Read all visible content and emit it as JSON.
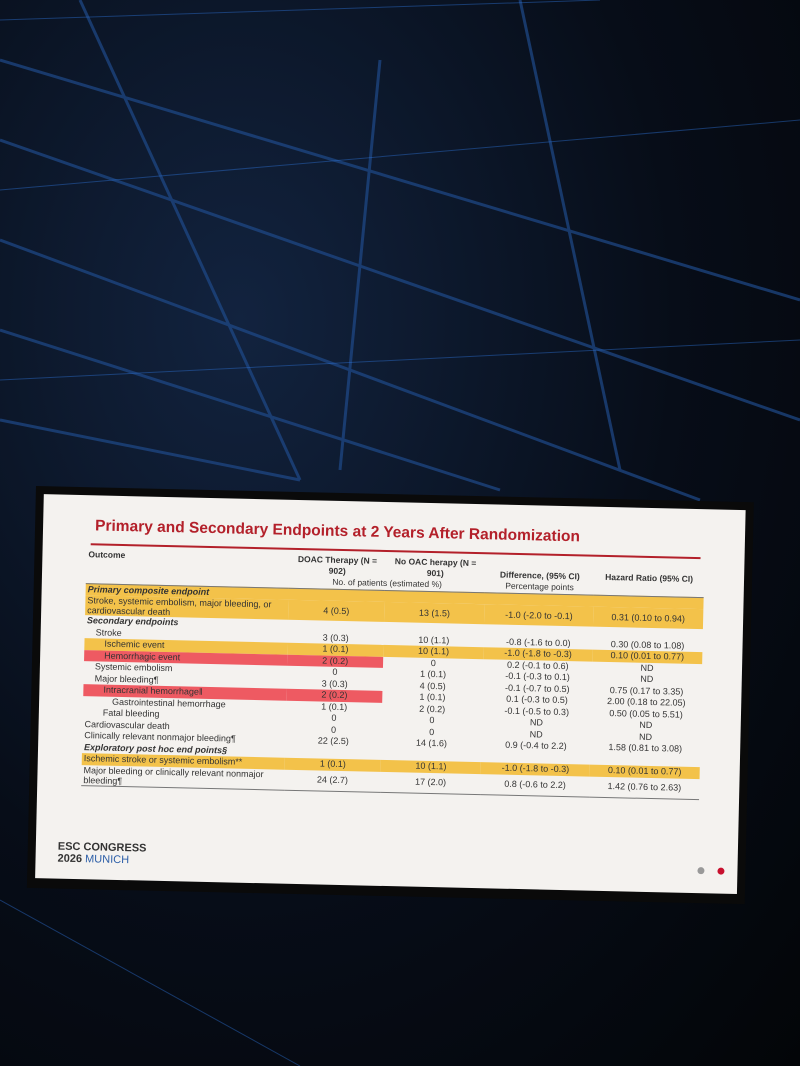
{
  "slide": {
    "title": "Primary and Secondary Endpoints at 2 Years After Randomization",
    "table": {
      "header": [
        "Outcome",
        "DOAC Therapy (N = 902)",
        "No OAC herapy (N = 901)",
        "Difference, (95% CI)",
        "Hazard Ratio (95% CI)"
      ],
      "subheader": [
        "No. of patients (estimated %)",
        "Percentage points"
      ],
      "rows": [
        {
          "section": "Primary composite endpoint",
          "highlight": "yellow"
        },
        {
          "cells": [
            "Stroke, systemic embolism, major bleeding, or cardiovascular death",
            "4 (0.5)",
            "13 (1.5)",
            "-1.0 (-2.0 to -0.1)",
            "0.31 (0.10 to 0.94)"
          ],
          "highlight": "yellow"
        },
        {
          "section": "Secondary endpoints"
        },
        {
          "cells": [
            "Stroke",
            "3 (0.3)",
            "10 (1.1)",
            "-0.8 (-1.6 to 0.0)",
            "0.30 (0.08 to 1.08)"
          ],
          "indent": 1
        },
        {
          "cells": [
            "Ischemic event",
            "1 (0.1)",
            "10 (1.1)",
            "-1.0 (-1.8 to -0.3)",
            "0.10 (0.01 to 0.77)"
          ],
          "indent": 2,
          "highlight": "yellow"
        },
        {
          "cells": [
            "Hemorrhagic event",
            "2 (0.2)",
            "0",
            "0.2 (-0.1 to 0.6)",
            "ND"
          ],
          "indent": 2,
          "highlight": "red"
        },
        {
          "cells": [
            "Systemic embolism",
            "0",
            "1 (0.1)",
            "-0.1 (-0.3 to 0.1)",
            "ND"
          ],
          "indent": 1
        },
        {
          "cells": [
            "Major bleeding¶",
            "3 (0.3)",
            "4 (0.5)",
            "-0.1 (-0.7 to 0.5)",
            "0.75 (0.17 to 3.35)"
          ],
          "indent": 1
        },
        {
          "cells": [
            "Intracranial hemorrhage‖",
            "2 (0.2)",
            "1 (0.1)",
            "0.1 (-0.3 to 0.5)",
            "2.00 (0.18 to 22.05)"
          ],
          "indent": 2,
          "highlight": "red"
        },
        {
          "cells": [
            "Gastrointestinal hemorrhage",
            "1 (0.1)",
            "2 (0.2)",
            "-0.1 (-0.5 to 0.3)",
            "0.50 (0.05 to 5.51)"
          ],
          "indent": 3
        },
        {
          "cells": [
            "Fatal bleeding",
            "0",
            "0",
            "ND",
            "ND"
          ],
          "indent": 2
        },
        {
          "cells": [
            "Cardiovascular death",
            "0",
            "0",
            "ND",
            "ND"
          ]
        },
        {
          "cells": [
            "Clinically relevant nonmajor bleeding¶",
            "22 (2.5)",
            "14 (1.6)",
            "0.9 (-0.4 to 2.2)",
            "1.58 (0.81 to 3.08)"
          ]
        },
        {
          "section": "Exploratory post hoc end points§"
        },
        {
          "cells": [
            "Ischemic stroke or systemic embolism**",
            "1 (0.1)",
            "10 (1.1)",
            "-1.0 (-1.8 to -0.3)",
            "0.10 (0.01 to 0.77)"
          ],
          "highlight": "yellow"
        },
        {
          "cells": [
            "Major bleeding or clinically relevant nonmajor bleeding¶",
            "24 (2.7)",
            "17 (2.0)",
            "0.8 (-0.6 to 2.2)",
            "1.42 (0.76 to 2.63)"
          ]
        }
      ]
    },
    "footer": {
      "line1": "ESC CONGRESS",
      "year": "2026",
      "city": "MUNICH"
    }
  }
}
